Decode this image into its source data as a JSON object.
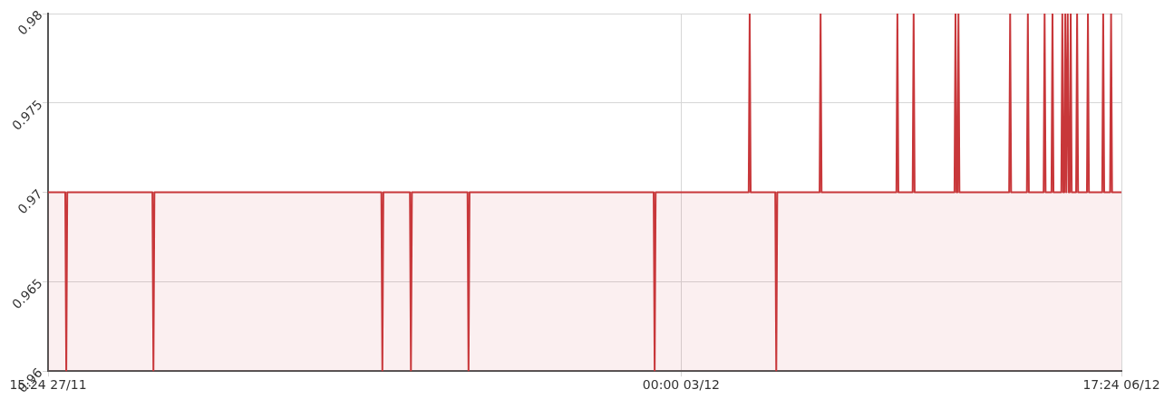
{
  "chart_data": {
    "type": "area",
    "series": [
      {
        "color": "#c8373a",
        "x": [
          "--11-27T15:24",
          "--11-27T18:54",
          "--11-27T19:06",
          "--11-27T19:18",
          "--11-28T12:36",
          "--11-28T12:48",
          "--11-28T13:00",
          "--11-30T11:06",
          "--11-30T11:18",
          "--11-30T11:30",
          "--11-30T16:54",
          "--11-30T17:06",
          "--11-30T17:18",
          "--12-01T04:36",
          "--12-01T04:48",
          "--12-01T05:00",
          "--12-02T18:24",
          "--12-02T18:36",
          "--12-02T18:48",
          "--12-03T13:42",
          "--12-03T13:54",
          "--12-03T14:06",
          "--12-03T19:06",
          "--12-03T19:18",
          "--12-03T19:30",
          "--12-04T04:06",
          "--12-04T04:18",
          "--12-04T04:30",
          "--12-04T19:42",
          "--12-04T19:54",
          "--12-04T20:06",
          "--12-04T23:00",
          "--12-04T23:12",
          "--12-04T23:24",
          "--12-05T07:30",
          "--12-05T07:42",
          "--12-05T07:54",
          "--12-05T08:06",
          "--12-05T08:18",
          "--12-05T08:30",
          "--12-05T18:36",
          "--12-05T18:48",
          "--12-05T19:00",
          "--12-05T22:12",
          "--12-05T22:24",
          "--12-05T22:36",
          "--12-06T01:36",
          "--12-06T01:48",
          "--12-06T02:00",
          "--12-06T03:12",
          "--12-06T03:24",
          "--12-06T03:36",
          "--12-06T05:12",
          "--12-06T05:24",
          "--12-06T05:36",
          "--12-06T05:48",
          "--12-06T06:00",
          "--12-06T06:12",
          "--12-06T06:18",
          "--12-06T06:30",
          "--12-06T06:42",
          "--12-06T06:54",
          "--12-06T07:06",
          "--12-06T07:18",
          "--12-06T08:12",
          "--12-06T08:24",
          "--12-06T08:36",
          "--12-06T10:24",
          "--12-06T10:36",
          "--12-06T10:48",
          "--12-06T13:30",
          "--12-06T13:42",
          "--12-06T13:54",
          "--12-06T15:06",
          "--12-06T15:18",
          "--12-06T15:30",
          "--12-06T17:24"
        ],
        "values": [
          0.97,
          0.97,
          0.96,
          0.97,
          0.97,
          0.96,
          0.97,
          0.97,
          0.96,
          0.97,
          0.97,
          0.96,
          0.97,
          0.97,
          0.96,
          0.97,
          0.97,
          0.96,
          0.97,
          0.97,
          0.98,
          0.97,
          0.97,
          0.96,
          0.97,
          0.97,
          0.98,
          0.97,
          0.97,
          0.98,
          0.97,
          0.97,
          0.98,
          0.97,
          0.97,
          0.98,
          0.97,
          0.97,
          0.98,
          0.97,
          0.97,
          0.98,
          0.97,
          0.97,
          0.98,
          0.97,
          0.97,
          0.98,
          0.97,
          0.97,
          0.98,
          0.97,
          0.97,
          0.98,
          0.97,
          0.97,
          0.98,
          0.97,
          0.97,
          0.98,
          0.97,
          0.97,
          0.98,
          0.97,
          0.97,
          0.98,
          0.97,
          0.97,
          0.98,
          0.97,
          0.97,
          0.98,
          0.97,
          0.97,
          0.98,
          0.97,
          0.97
        ]
      }
    ],
    "xlim": [
      "--11-27T15:24",
      "--12-06T17:24"
    ],
    "xticks": [
      {
        "value": "--11-27T15:24",
        "label": "15:24 27/11"
      },
      {
        "value": "--12-03T00:00",
        "label": "00:00 03/12"
      },
      {
        "value": "--12-06T17:24",
        "label": "17:24 06/12"
      }
    ],
    "ylim": [
      0.96,
      0.98
    ],
    "yticks": [
      0.96,
      0.965,
      0.97,
      0.975,
      0.98
    ],
    "grid": true,
    "marker": "none",
    "line_style": "solid",
    "legend": false
  }
}
